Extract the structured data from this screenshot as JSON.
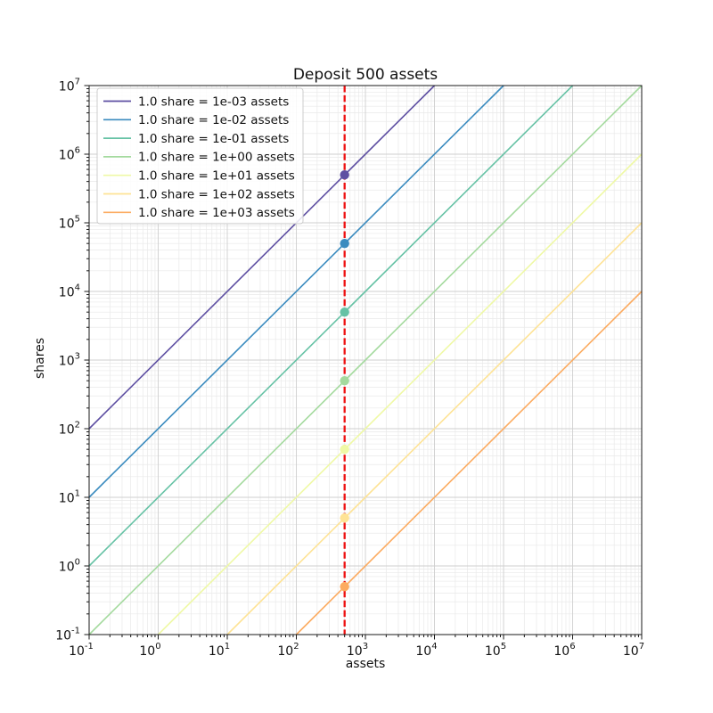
{
  "figure": {
    "title": "Deposit 500 assets",
    "xlabel": "assets",
    "ylabel": "shares"
  },
  "chart_data": {
    "type": "line",
    "title": "Deposit 500 assets",
    "xlabel": "assets",
    "ylabel": "shares",
    "xscale": "log",
    "yscale": "log",
    "xlim": [
      0.1,
      10000000
    ],
    "ylim": [
      0.1,
      10000000
    ],
    "x_tick_exponents": [
      -1,
      0,
      1,
      2,
      3,
      4,
      5,
      6,
      7
    ],
    "y_tick_exponents": [
      -1,
      0,
      1,
      2,
      3,
      4,
      5,
      6,
      7
    ],
    "grid": "both",
    "legend_position": "upper-left",
    "deposit": {
      "assets": 500
    },
    "vline": {
      "x": 500,
      "color": "#ee1111",
      "style": "dashed"
    },
    "series": [
      {
        "label": "1.0 share = 1e-03 assets",
        "assets_per_share": 0.001,
        "color": "#5e4fa2",
        "point": {
          "assets": 500,
          "shares": 500000
        }
      },
      {
        "label": "1.0 share = 1e-02 assets",
        "assets_per_share": 0.01,
        "color": "#3a8bbf",
        "point": {
          "assets": 500,
          "shares": 50000
        }
      },
      {
        "label": "1.0 share = 1e-01 assets",
        "assets_per_share": 0.1,
        "color": "#66c2a5",
        "point": {
          "assets": 500,
          "shares": 5000
        }
      },
      {
        "label": "1.0 share = 1e+00 assets",
        "assets_per_share": 1.0,
        "color": "#a4da9e",
        "point": {
          "assets": 500,
          "shares": 500
        }
      },
      {
        "label": "1.0 share = 1e+01 assets",
        "assets_per_share": 10.0,
        "color": "#eff9a6",
        "point": {
          "assets": 500,
          "shares": 50
        }
      },
      {
        "label": "1.0 share = 1e+02 assets",
        "assets_per_share": 100.0,
        "color": "#fee395",
        "point": {
          "assets": 500,
          "shares": 5
        }
      },
      {
        "label": "1.0 share = 1e+03 assets",
        "assets_per_share": 1000.0,
        "color": "#fcab60",
        "point": {
          "assets": 500,
          "shares": 0.5
        }
      }
    ]
  }
}
